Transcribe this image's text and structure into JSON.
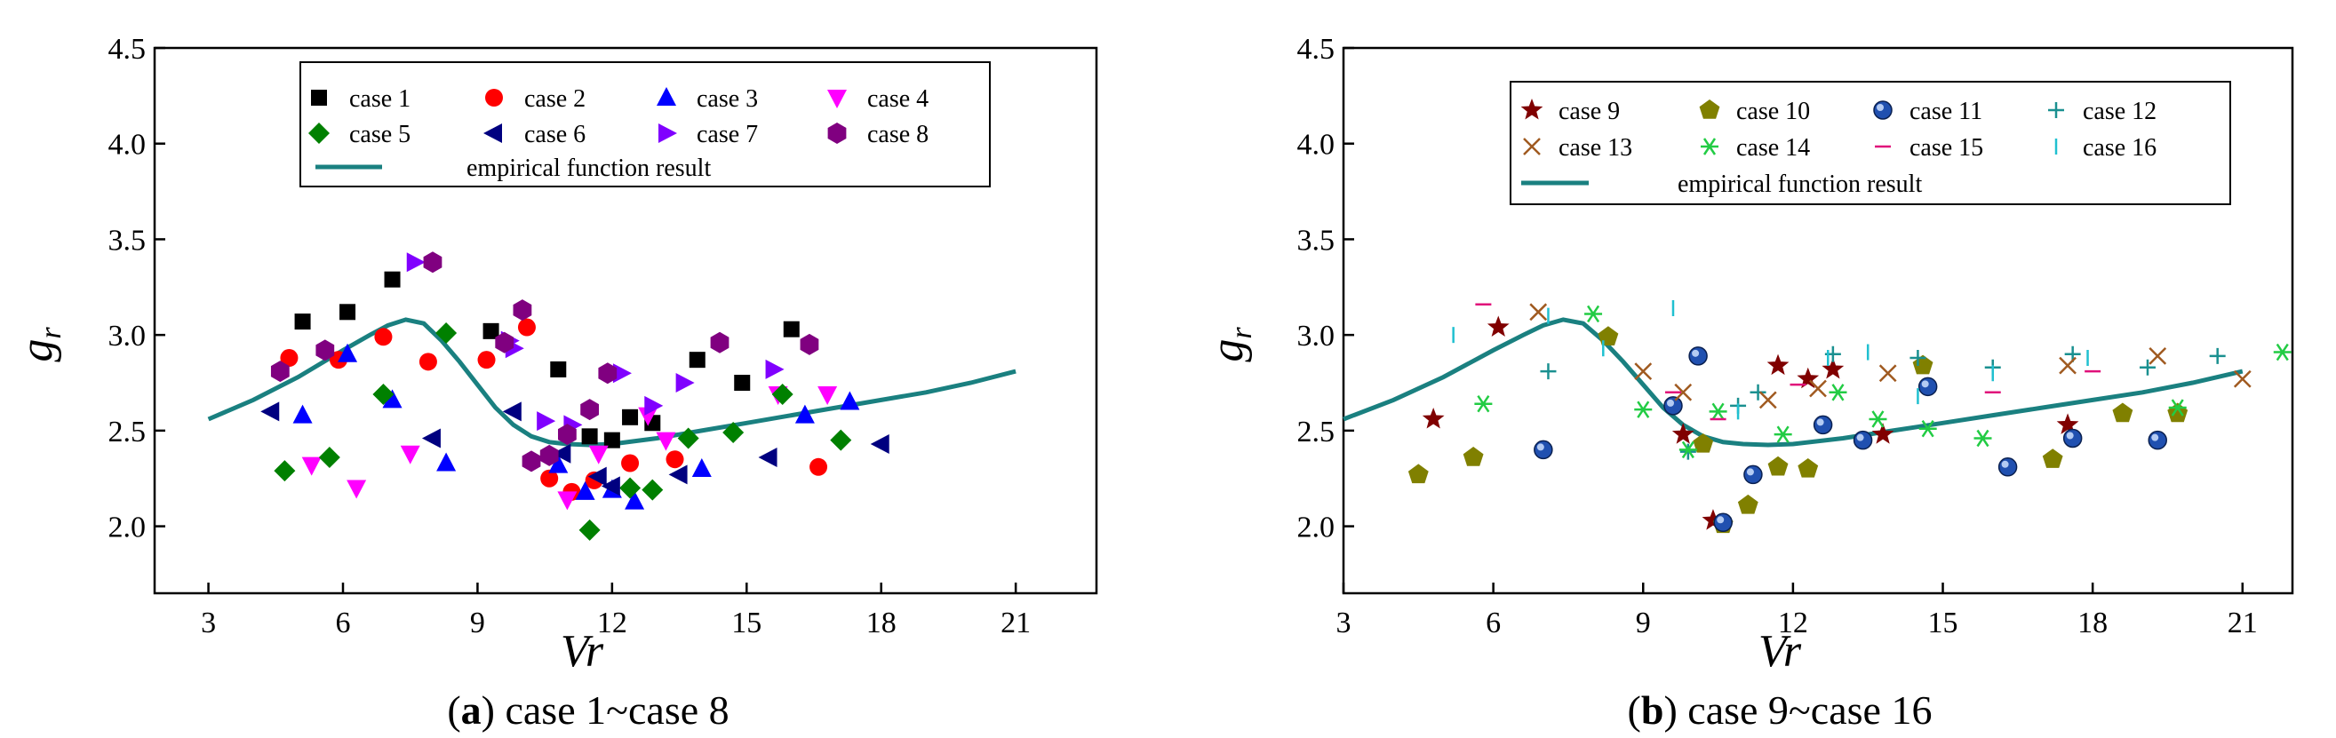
{
  "captions": [
    {
      "prefix": "(",
      "letter": "a",
      "rest": ") case 1~case 8"
    },
    {
      "prefix": "(",
      "letter": "b",
      "rest": ") case 9~case 16"
    }
  ],
  "chart_data": [
    {
      "type": "scatter",
      "title": "(a) case 1~case 8",
      "xlabel": "Vr",
      "ylabel_base": "g",
      "ylabel_sub": "r",
      "xlim": [
        1.8,
        22.8
      ],
      "ylim": [
        1.65,
        4.5
      ],
      "xticks": [
        3,
        6,
        9,
        12,
        15,
        18,
        21
      ],
      "yticks": [
        2.0,
        2.5,
        3.0,
        3.5,
        4.0,
        4.5
      ],
      "ytick_labels": [
        "2.0",
        "2.5",
        "3.0",
        "3.5",
        "4.0",
        "4.5"
      ],
      "line": {
        "name": "empirical function result",
        "color": "#1a8080",
        "points": [
          [
            3.0,
            2.56
          ],
          [
            4.0,
            2.66
          ],
          [
            5.0,
            2.78
          ],
          [
            6.0,
            2.92
          ],
          [
            6.6,
            3.0
          ],
          [
            7.0,
            3.05
          ],
          [
            7.4,
            3.08
          ],
          [
            7.8,
            3.06
          ],
          [
            8.2,
            2.97
          ],
          [
            8.6,
            2.86
          ],
          [
            9.0,
            2.74
          ],
          [
            9.4,
            2.62
          ],
          [
            9.8,
            2.53
          ],
          [
            10.2,
            2.47
          ],
          [
            10.6,
            2.44
          ],
          [
            11.0,
            2.43
          ],
          [
            11.5,
            2.425
          ],
          [
            12.0,
            2.43
          ],
          [
            13.0,
            2.46
          ],
          [
            14.0,
            2.5
          ],
          [
            15.0,
            2.54
          ],
          [
            16.0,
            2.58
          ],
          [
            17.0,
            2.62
          ],
          [
            18.0,
            2.66
          ],
          [
            19.0,
            2.7
          ],
          [
            20.0,
            2.75
          ],
          [
            21.0,
            2.81
          ]
        ]
      },
      "series": [
        {
          "name": "case 1",
          "marker": "square",
          "color": "#000000",
          "points": [
            [
              5.1,
              3.07
            ],
            [
              6.1,
              3.12
            ],
            [
              7.1,
              3.29
            ],
            [
              9.3,
              3.02
            ],
            [
              10.8,
              2.82
            ],
            [
              11.5,
              2.47
            ],
            [
              12.0,
              2.45
            ],
            [
              12.4,
              2.57
            ],
            [
              12.9,
              2.54
            ],
            [
              13.9,
              2.87
            ],
            [
              14.9,
              2.75
            ],
            [
              16.0,
              3.03
            ]
          ]
        },
        {
          "name": "case 2",
          "marker": "circle",
          "color": "#ff0000",
          "points": [
            [
              4.8,
              2.88
            ],
            [
              5.9,
              2.87
            ],
            [
              6.9,
              2.99
            ],
            [
              7.9,
              2.86
            ],
            [
              9.2,
              2.87
            ],
            [
              10.1,
              3.04
            ],
            [
              10.6,
              2.25
            ],
            [
              11.1,
              2.18
            ],
            [
              11.6,
              2.24
            ],
            [
              12.4,
              2.33
            ],
            [
              13.4,
              2.35
            ],
            [
              16.6,
              2.31
            ]
          ]
        },
        {
          "name": "case 3",
          "marker": "triangle-up",
          "color": "#0000ff",
          "points": [
            [
              5.1,
              2.58
            ],
            [
              6.1,
              2.9
            ],
            [
              7.1,
              2.66
            ],
            [
              8.3,
              2.33
            ],
            [
              10.8,
              2.32
            ],
            [
              11.4,
              2.18
            ],
            [
              12.0,
              2.19
            ],
            [
              12.5,
              2.13
            ],
            [
              14.0,
              2.3
            ],
            [
              16.3,
              2.58
            ],
            [
              17.3,
              2.65
            ]
          ]
        },
        {
          "name": "case 4",
          "marker": "triangle-down",
          "color": "#ff00ff",
          "points": [
            [
              5.3,
              2.32
            ],
            [
              6.3,
              2.2
            ],
            [
              7.5,
              2.38
            ],
            [
              11.0,
              2.14
            ],
            [
              11.7,
              2.38
            ],
            [
              12.8,
              2.58
            ],
            [
              13.2,
              2.45
            ],
            [
              15.7,
              2.69
            ],
            [
              16.8,
              2.69
            ]
          ]
        },
        {
          "name": "case 5",
          "marker": "diamond",
          "color": "#008000",
          "points": [
            [
              4.7,
              2.29
            ],
            [
              5.7,
              2.36
            ],
            [
              6.9,
              2.69
            ],
            [
              8.3,
              3.01
            ],
            [
              11.5,
              1.98
            ],
            [
              12.4,
              2.2
            ],
            [
              12.9,
              2.19
            ],
            [
              13.7,
              2.46
            ],
            [
              14.7,
              2.49
            ],
            [
              15.8,
              2.69
            ],
            [
              17.1,
              2.45
            ]
          ]
        },
        {
          "name": "case 6",
          "marker": "triangle-left",
          "color": "#000080",
          "points": [
            [
              4.4,
              2.6
            ],
            [
              8.0,
              2.46
            ],
            [
              9.8,
              2.6
            ],
            [
              10.9,
              2.38
            ],
            [
              11.7,
              2.26
            ],
            [
              12.0,
              2.21
            ],
            [
              13.5,
              2.27
            ],
            [
              15.5,
              2.36
            ],
            [
              18.0,
              2.43
            ]
          ]
        },
        {
          "name": "case 7",
          "marker": "triangle-right",
          "color": "#8000ff",
          "points": [
            [
              7.6,
              3.38
            ],
            [
              9.7,
              2.97
            ],
            [
              9.8,
              2.93
            ],
            [
              10.5,
              2.55
            ],
            [
              11.1,
              2.53
            ],
            [
              12.2,
              2.8
            ],
            [
              12.9,
              2.63
            ],
            [
              13.6,
              2.75
            ],
            [
              15.6,
              2.82
            ]
          ]
        },
        {
          "name": "case 8",
          "marker": "hexagon",
          "color": "#800080",
          "points": [
            [
              4.6,
              2.81
            ],
            [
              5.6,
              2.92
            ],
            [
              8.0,
              3.38
            ],
            [
              9.6,
              2.96
            ],
            [
              10.0,
              3.13
            ],
            [
              10.2,
              2.34
            ],
            [
              10.6,
              2.37
            ],
            [
              11.0,
              2.48
            ],
            [
              11.5,
              2.61
            ],
            [
              11.9,
              2.8
            ],
            [
              14.4,
              2.96
            ],
            [
              16.4,
              2.95
            ]
          ]
        }
      ],
      "legend": {
        "position": "top",
        "rows": [
          [
            "case 1",
            "case 2",
            "case 3",
            "case 4"
          ],
          [
            "case 5",
            "case 6",
            "case 7",
            "case 8"
          ]
        ],
        "line_label": "empirical function result"
      }
    },
    {
      "type": "scatter",
      "title": "(b) case 9~case 16",
      "xlabel": "Vr",
      "ylabel_base": "g",
      "ylabel_sub": "r",
      "xlim": [
        3.0,
        22.0
      ],
      "ylim": [
        1.65,
        4.5
      ],
      "xticks": [
        3,
        6,
        9,
        12,
        15,
        18,
        21
      ],
      "yticks": [
        2.0,
        2.5,
        3.0,
        3.5,
        4.0,
        4.5
      ],
      "ytick_labels": [
        "2.0",
        "2.5",
        "3.0",
        "3.5",
        "4.0",
        "4.5"
      ],
      "line": {
        "name": "empirical function result",
        "color": "#1a8080",
        "points": [
          [
            3.0,
            2.56
          ],
          [
            4.0,
            2.66
          ],
          [
            5.0,
            2.78
          ],
          [
            6.0,
            2.92
          ],
          [
            6.6,
            3.0
          ],
          [
            7.0,
            3.05
          ],
          [
            7.4,
            3.08
          ],
          [
            7.8,
            3.06
          ],
          [
            8.2,
            2.97
          ],
          [
            8.6,
            2.86
          ],
          [
            9.0,
            2.74
          ],
          [
            9.4,
            2.62
          ],
          [
            9.8,
            2.53
          ],
          [
            10.2,
            2.47
          ],
          [
            10.6,
            2.44
          ],
          [
            11.0,
            2.43
          ],
          [
            11.5,
            2.425
          ],
          [
            12.0,
            2.43
          ],
          [
            13.0,
            2.46
          ],
          [
            14.0,
            2.5
          ],
          [
            15.0,
            2.54
          ],
          [
            16.0,
            2.58
          ],
          [
            17.0,
            2.62
          ],
          [
            18.0,
            2.66
          ],
          [
            19.0,
            2.7
          ],
          [
            20.0,
            2.75
          ],
          [
            21.0,
            2.81
          ]
        ]
      },
      "series": [
        {
          "name": "case 9",
          "marker": "star",
          "color": "#800000",
          "points": [
            [
              4.8,
              2.56
            ],
            [
              6.1,
              3.04
            ],
            [
              9.8,
              2.48
            ],
            [
              10.4,
              2.03
            ],
            [
              11.7,
              2.84
            ],
            [
              12.3,
              2.77
            ],
            [
              12.8,
              2.82
            ],
            [
              13.8,
              2.48
            ],
            [
              17.5,
              2.53
            ]
          ]
        },
        {
          "name": "case 10",
          "marker": "pentagon",
          "color": "#808000",
          "points": [
            [
              4.5,
              2.27
            ],
            [
              5.6,
              2.36
            ],
            [
              8.3,
              2.99
            ],
            [
              10.2,
              2.43
            ],
            [
              10.6,
              2.01
            ],
            [
              11.1,
              2.11
            ],
            [
              11.7,
              2.31
            ],
            [
              12.3,
              2.3
            ],
            [
              14.6,
              2.84
            ],
            [
              17.2,
              2.35
            ],
            [
              18.6,
              2.59
            ],
            [
              19.7,
              2.59
            ]
          ]
        },
        {
          "name": "case 11",
          "marker": "sphere",
          "color": "#2050b0",
          "points": [
            [
              7.0,
              2.4
            ],
            [
              9.6,
              2.63
            ],
            [
              10.1,
              2.89
            ],
            [
              10.6,
              2.02
            ],
            [
              11.2,
              2.27
            ],
            [
              12.6,
              2.53
            ],
            [
              13.4,
              2.45
            ],
            [
              14.7,
              2.73
            ],
            [
              16.3,
              2.31
            ],
            [
              17.6,
              2.46
            ],
            [
              19.3,
              2.45
            ]
          ]
        },
        {
          "name": "case 12",
          "marker": "plus",
          "color": "#1a9090",
          "points": [
            [
              7.1,
              2.81
            ],
            [
              9.9,
              2.39
            ],
            [
              10.9,
              2.63
            ],
            [
              11.3,
              2.7
            ],
            [
              12.8,
              2.9
            ],
            [
              14.5,
              2.88
            ],
            [
              16.0,
              2.83
            ],
            [
              17.6,
              2.9
            ],
            [
              19.1,
              2.83
            ],
            [
              20.5,
              2.89
            ]
          ]
        },
        {
          "name": "case 13",
          "marker": "x",
          "color": "#a05a20",
          "points": [
            [
              6.9,
              3.12
            ],
            [
              9.0,
              2.81
            ],
            [
              9.8,
              2.7
            ],
            [
              11.5,
              2.66
            ],
            [
              12.5,
              2.72
            ],
            [
              13.9,
              2.8
            ],
            [
              17.5,
              2.84
            ],
            [
              19.3,
              2.89
            ],
            [
              21.0,
              2.77
            ]
          ]
        },
        {
          "name": "case 14",
          "marker": "asterisk",
          "color": "#22cc44",
          "points": [
            [
              5.8,
              2.64
            ],
            [
              8.0,
              3.11
            ],
            [
              9.0,
              2.61
            ],
            [
              9.9,
              2.4
            ],
            [
              10.5,
              2.6
            ],
            [
              11.8,
              2.48
            ],
            [
              12.9,
              2.7
            ],
            [
              13.7,
              2.56
            ],
            [
              14.7,
              2.51
            ],
            [
              15.8,
              2.46
            ],
            [
              19.7,
              2.62
            ],
            [
              21.8,
              2.91
            ]
          ]
        },
        {
          "name": "case 15",
          "marker": "minus",
          "color": "#e0107a",
          "points": [
            [
              5.8,
              3.16
            ],
            [
              9.6,
              2.7
            ],
            [
              10.5,
              2.56
            ],
            [
              12.1,
              2.74
            ],
            [
              16.0,
              2.7
            ],
            [
              18.0,
              2.81
            ]
          ]
        },
        {
          "name": "case 16",
          "marker": "vline",
          "color": "#20c0d0",
          "points": [
            [
              5.2,
              3.0
            ],
            [
              7.1,
              3.1
            ],
            [
              8.2,
              2.93
            ],
            [
              9.6,
              3.14
            ],
            [
              10.9,
              2.6
            ],
            [
              12.7,
              2.88
            ],
            [
              13.5,
              2.91
            ],
            [
              14.5,
              2.68
            ],
            [
              16.0,
              2.8
            ],
            [
              17.9,
              2.88
            ]
          ]
        }
      ],
      "legend": {
        "position": "top",
        "rows": [
          [
            "case 9",
            "case 10",
            "case 11",
            "case 12"
          ],
          [
            "case 13",
            "case 14",
            "case 15",
            "case 16"
          ]
        ],
        "line_label": "empirical function result"
      }
    }
  ]
}
